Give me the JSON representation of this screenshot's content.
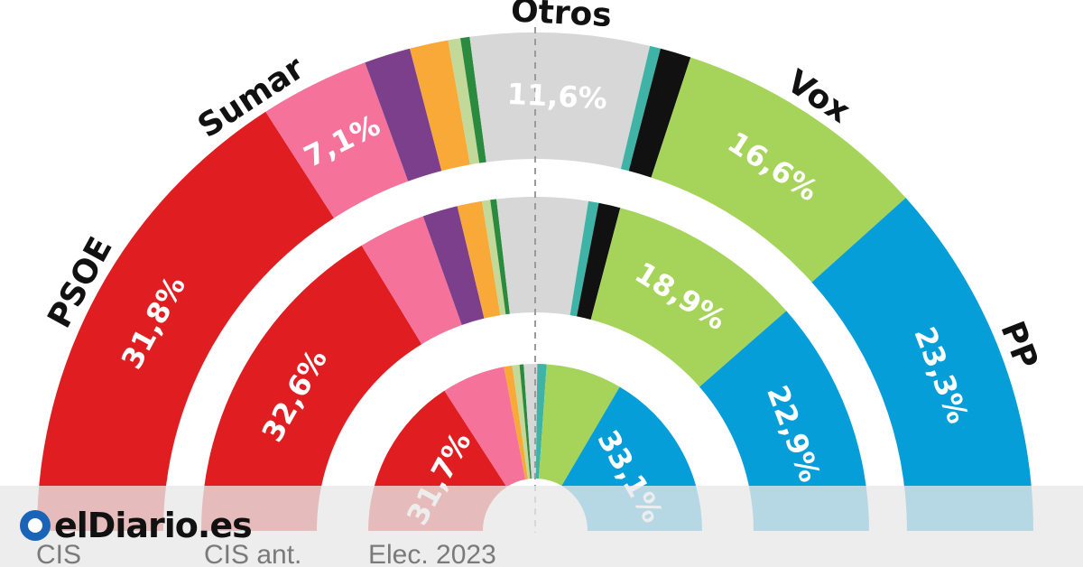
{
  "chart_data": {
    "type": "semicircle-donut",
    "rings": [
      {
        "label": "CIS",
        "segments": [
          {
            "party": "PSOE",
            "share": 31.8,
            "color": "#e01e22",
            "label": "31,8%"
          },
          {
            "party": "Sumar",
            "share": 7.1,
            "color": "#f5739a",
            "label": "7,1%"
          },
          {
            "party": "",
            "share": 3.0,
            "color": "#7b3f8c",
            "label": ""
          },
          {
            "party": "",
            "share": 2.5,
            "color": "#f9a937",
            "label": ""
          },
          {
            "party": "",
            "share": 0.8,
            "color": "#c3d99a",
            "label": ""
          },
          {
            "party": "",
            "share": 0.6,
            "color": "#2a8a3e",
            "label": ""
          },
          {
            "party": "Otros",
            "share": 11.6,
            "color": "#d7d7d7",
            "label": "11,6%"
          },
          {
            "party": "",
            "share": 0.7,
            "color": "#3fb3a5",
            "label": ""
          },
          {
            "party": "",
            "share": 2.0,
            "color": "#111111",
            "label": ""
          },
          {
            "party": "Vox",
            "share": 16.6,
            "color": "#a6d45a",
            "label": "16,6%"
          },
          {
            "party": "PP",
            "share": 23.3,
            "color": "#059ed8",
            "label": "23,3%"
          }
        ]
      },
      {
        "label": "CIS ant.",
        "segments": [
          {
            "party": "PSOE",
            "share": 32.6,
            "color": "#e01e22",
            "label": "32,6%"
          },
          {
            "party": "Sumar",
            "share": 6.5,
            "color": "#f5739a",
            "label": ""
          },
          {
            "party": "",
            "share": 3.4,
            "color": "#7b3f8c",
            "label": ""
          },
          {
            "party": "",
            "share": 2.4,
            "color": "#f9a937",
            "label": ""
          },
          {
            "party": "",
            "share": 0.8,
            "color": "#c3d99a",
            "label": ""
          },
          {
            "party": "",
            "share": 0.6,
            "color": "#2a8a3e",
            "label": ""
          },
          {
            "party": "Otros",
            "share": 8.8,
            "color": "#d7d7d7",
            "label": ""
          },
          {
            "party": "",
            "share": 1.0,
            "color": "#3fb3a5",
            "label": ""
          },
          {
            "party": "",
            "share": 2.1,
            "color": "#111111",
            "label": ""
          },
          {
            "party": "Vox",
            "share": 18.9,
            "color": "#a6d45a",
            "label": "18,9%"
          },
          {
            "party": "PP",
            "share": 22.9,
            "color": "#059ed8",
            "label": "22,9%"
          }
        ]
      },
      {
        "label": "Elec. 2023",
        "segments": [
          {
            "party": "PSOE",
            "share": 31.7,
            "color": "#e01e22",
            "label": "31,7%"
          },
          {
            "party": "Sumar",
            "share": 12.3,
            "color": "#f5739a",
            "label": ""
          },
          {
            "party": "",
            "share": 1.6,
            "color": "#f9a937",
            "label": ""
          },
          {
            "party": "",
            "share": 1.4,
            "color": "#c3d99a",
            "label": ""
          },
          {
            "party": "",
            "share": 0.8,
            "color": "#2a8a3e",
            "label": ""
          },
          {
            "party": "Otros",
            "share": 2.6,
            "color": "#d7d7d7",
            "label": ""
          },
          {
            "party": "",
            "share": 1.8,
            "color": "#3fb3a5",
            "label": ""
          },
          {
            "party": "Vox",
            "share": 14.7,
            "color": "#a6d45a",
            "label": ""
          },
          {
            "party": "PP",
            "share": 33.1,
            "color": "#059ed8",
            "label": "33,1%"
          }
        ]
      }
    ],
    "party_labels": [
      "PSOE",
      "Sumar",
      "Otros",
      "Vox",
      "PP"
    ]
  },
  "brand": {
    "name": "elDiario.es",
    "mark_color": "#1a63b7"
  },
  "colors": {
    "divider": "#9a9a9a",
    "footer_band": "#e8e8e8"
  }
}
